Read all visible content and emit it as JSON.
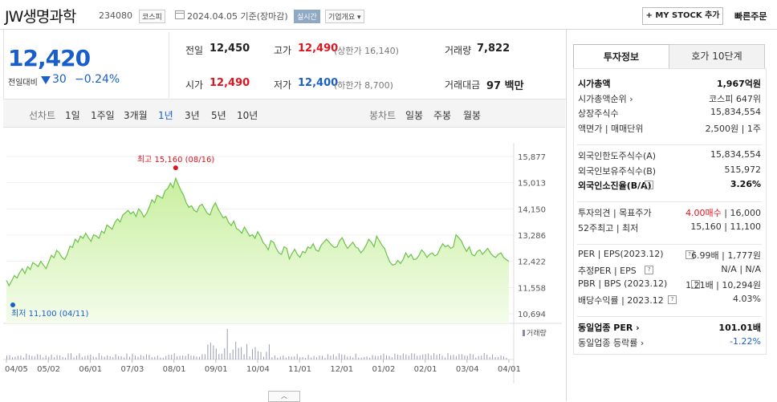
{
  "header": {
    "stock_name": "JW생명과학",
    "stock_code": "234080",
    "market": "코스피",
    "date_text": "2024.04.05 기준(장마감)",
    "realtime_label": "실시간",
    "company_info_label": "기업개요 ▾",
    "mystock_label": "+ MY STOCK 추가",
    "quick_order_label": "빠른주문"
  },
  "quote": {
    "price": "12,420",
    "change_label": "전일대비",
    "change_value": "30",
    "change_pct": "−0.24%",
    "prev_close_label": "전일",
    "prev_close": "12,450",
    "open_label": "시가",
    "open": "12,490",
    "high_label": "고가",
    "high": "12,490",
    "upper_limit": "(상한가 16,140)",
    "low_label": "저가",
    "low": "12,400",
    "lower_limit": "(하한가 8,700)",
    "volume_label": "거래량",
    "volume": "7,822",
    "amount_label": "거래대금",
    "amount": "97 백만"
  },
  "periods": {
    "line_chart_label": "선차트",
    "line": [
      "1일",
      "1주일",
      "3개월",
      "1년",
      "3년",
      "5년",
      "10년"
    ],
    "selected": "1년",
    "candle_chart_label": "봉차트",
    "candle": [
      "일봉",
      "주봉",
      "월봉"
    ]
  },
  "chart_data": {
    "type": "area",
    "y_ticks": [
      "15,877",
      "15,013",
      "14,150",
      "13,286",
      "12,422",
      "11,558",
      "10,694"
    ],
    "ylim": [
      10694,
      15877
    ],
    "x_ticks": [
      "04/05",
      "05/02",
      "06/01",
      "07/03",
      "08/01",
      "09/01",
      "10/04",
      "11/01",
      "12/01",
      "01/02",
      "02/01",
      "03/04",
      "04/01"
    ],
    "max_annotation": "최고 15,160 (08/16)",
    "min_annotation": "최저 11,100 (04/11)",
    "volume_legend": "거래량",
    "series": [
      {
        "values": [
          11800,
          11620,
          11780,
          11950,
          11870,
          12050,
          12180,
          12020,
          12250,
          12150,
          12380,
          12320,
          12250,
          12420,
          12300,
          12180,
          12400,
          12620,
          12540,
          12780,
          12700,
          12550,
          12480,
          12650,
          12920,
          12880,
          13150,
          13050,
          13250,
          13180,
          13350,
          13200,
          13080,
          13300,
          13250,
          13180,
          13420,
          13350,
          13620,
          13550,
          13480,
          13700,
          13820,
          13720,
          13950,
          14020,
          14100,
          13980,
          14060,
          13900,
          14150,
          14050,
          13880,
          14000,
          14200,
          14450,
          14350,
          14600,
          14550,
          14500,
          14750,
          14820,
          15000,
          14850,
          15160,
          14950,
          14750,
          14600,
          14350,
          14200,
          14250,
          14100,
          14050,
          14250,
          14300,
          14150,
          14000,
          13950,
          14200,
          14350,
          14150,
          14000,
          13850,
          13900,
          13700,
          13600,
          13750,
          13500,
          13450,
          13350,
          13550,
          13400,
          13250,
          13300,
          13180,
          13400,
          13250,
          13050,
          12950,
          12800,
          13100,
          13050,
          12850,
          12700,
          12650,
          12900,
          12850,
          12500,
          12680,
          12820,
          12650,
          12550,
          12750,
          12700,
          12900,
          12850,
          13000,
          12800,
          12750,
          12950,
          13050,
          13150,
          13050,
          12950,
          12880,
          12900,
          13100,
          13200,
          13000,
          12850,
          12950,
          13050,
          12900,
          12850,
          12700,
          12800,
          12950,
          13150,
          13050,
          12900,
          13250,
          13100,
          12950,
          12850,
          12600,
          12400,
          12300,
          12320,
          12450,
          12350,
          12480,
          12700,
          12550,
          12650,
          12480,
          12500,
          12620,
          12800,
          12700,
          12550,
          12650,
          12700,
          12600,
          12650,
          12850,
          13000,
          12900,
          12950,
          12850,
          12900,
          13300,
          13200,
          13100,
          12900,
          12750,
          12900,
          12650,
          12600,
          12750,
          12800,
          12650,
          12750,
          12850,
          12700,
          12600,
          12550,
          12650,
          12700,
          12550,
          12480,
          12420
        ]
      }
    ]
  },
  "side": {
    "tab_invest": "투자정보",
    "tab_quote10": "호가 10단계",
    "rows1": [
      {
        "k": "시가총액",
        "v": "1,967억원",
        "bold": true
      },
      {
        "k": "시가총액순위 ›",
        "v": "코스피 647위"
      },
      {
        "k": "상장주식수",
        "v": "15,834,554"
      },
      {
        "k": "액면가 | 매매단위",
        "v": "2,500원 | 1주"
      }
    ],
    "rows2": [
      {
        "k": "외국인한도주식수(A)",
        "v": "15,834,554"
      },
      {
        "k": "외국인보유주식수(B)",
        "v": "515,972"
      },
      {
        "k": "외국인소진율(B/A)",
        "v": "3.26%",
        "bold": true,
        "q": true
      }
    ],
    "rows3": [
      {
        "k": "투자의견 | 목표주가",
        "v": "4.00매수 | 16,000",
        "v_red": "4.00매수",
        "v_rest": " | 16,000"
      },
      {
        "k": "52주최고 | 최저",
        "v": "15,160 | 11,100"
      }
    ],
    "rows4": [
      {
        "k": "PER | EPS(2023.12)",
        "v": "6.99배 | 1,777원",
        "q": true
      },
      {
        "k": "추정PER | EPS",
        "v": "N/A | N/A",
        "q": true
      },
      {
        "k": "PBR | BPS (2023.12)",
        "v": "1.21배 | 10,294원",
        "q": true
      },
      {
        "k": "배당수익률 | 2023.12",
        "v": "4.03%",
        "q": true
      }
    ],
    "rows5": [
      {
        "k": "동일업종 PER ›",
        "v": "101.01배",
        "bold": true
      },
      {
        "k": "동일업종 등락률 ›",
        "v": "-1.22%",
        "blue": true
      }
    ]
  },
  "colors": {
    "up": "#e0141e",
    "down": "#1a5fc9",
    "line": "#6cc24a"
  }
}
